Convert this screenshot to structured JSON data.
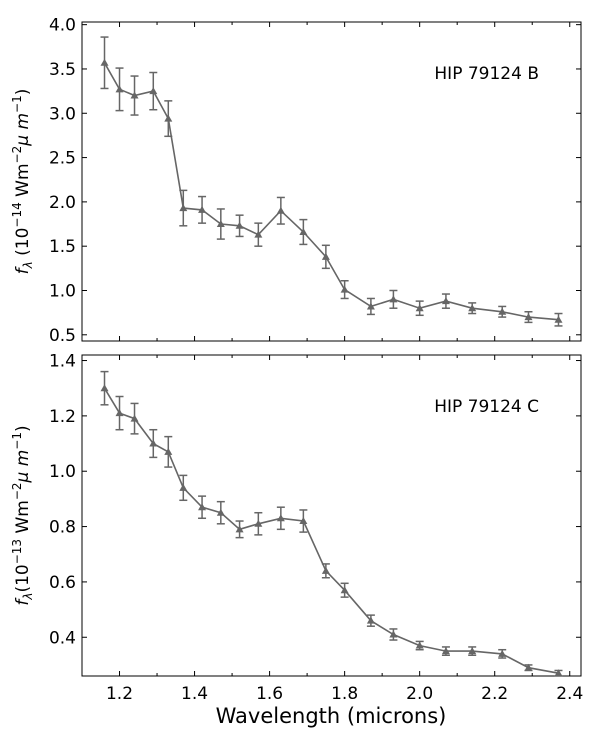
{
  "chart_data": [
    {
      "type": "line",
      "label": "HIP 79124 B",
      "ylabel": "f_λ (10⁻¹⁴ Wm⁻²μm⁻¹)",
      "ylabel_parts": [
        "(10",
        "−14",
        " Wm",
        "−2",
        "μ m",
        "−1",
        ")"
      ],
      "xlim": [
        1.1,
        2.43
      ],
      "ylim": [
        0.43,
        4.03
      ],
      "yticks": [
        0.5,
        1.0,
        1.5,
        2.0,
        2.5,
        3.0,
        3.5,
        4.0
      ],
      "ytick_labels": [
        "0.5",
        "1.0",
        "1.5",
        "2.0",
        "2.5",
        "3.0",
        "3.5",
        "4.0"
      ],
      "series_color": "#666666",
      "x": [
        1.16,
        1.2,
        1.24,
        1.29,
        1.33,
        1.37,
        1.42,
        1.47,
        1.52,
        1.57,
        1.63,
        1.69,
        1.75,
        1.8,
        1.87,
        1.93,
        2.0,
        2.07,
        2.14,
        2.22,
        2.29,
        2.37
      ],
      "y": [
        3.57,
        3.27,
        3.2,
        3.25,
        2.94,
        1.93,
        1.91,
        1.75,
        1.73,
        1.63,
        1.9,
        1.66,
        1.38,
        1.01,
        0.82,
        0.9,
        0.8,
        0.88,
        0.8,
        0.76,
        0.7,
        0.67
      ],
      "yerr": [
        0.29,
        0.24,
        0.22,
        0.21,
        0.2,
        0.2,
        0.15,
        0.17,
        0.12,
        0.13,
        0.15,
        0.14,
        0.13,
        0.1,
        0.09,
        0.1,
        0.08,
        0.08,
        0.06,
        0.06,
        0.06,
        0.07
      ]
    },
    {
      "type": "line",
      "label": "HIP 79124 C",
      "ylabel": "f_λ (10⁻¹³ Wm⁻²μm⁻¹)",
      "ylabel_parts": [
        "(10",
        "−13",
        " Wm",
        "−2",
        "μ m",
        "−1",
        ")"
      ],
      "xlim": [
        1.1,
        2.43
      ],
      "ylim": [
        0.26,
        1.42
      ],
      "yticks": [
        0.4,
        0.6,
        0.8,
        1.0,
        1.2,
        1.4
      ],
      "ytick_labels": [
        "0.4",
        "0.6",
        "0.8",
        "1.0",
        "1.2",
        "1.4"
      ],
      "series_color": "#666666",
      "x": [
        1.16,
        1.2,
        1.24,
        1.29,
        1.33,
        1.37,
        1.42,
        1.47,
        1.52,
        1.57,
        1.63,
        1.69,
        1.75,
        1.8,
        1.87,
        1.93,
        2.0,
        2.07,
        2.14,
        2.22,
        2.29,
        2.37
      ],
      "y": [
        1.3,
        1.21,
        1.19,
        1.1,
        1.07,
        0.94,
        0.87,
        0.85,
        0.79,
        0.81,
        0.83,
        0.82,
        0.64,
        0.57,
        0.46,
        0.41,
        0.37,
        0.35,
        0.35,
        0.34,
        0.29,
        0.27
      ],
      "yerr": [
        0.06,
        0.06,
        0.055,
        0.05,
        0.055,
        0.045,
        0.04,
        0.04,
        0.03,
        0.04,
        0.04,
        0.04,
        0.025,
        0.025,
        0.02,
        0.02,
        0.015,
        0.015,
        0.015,
        0.015,
        0.01,
        0.01
      ]
    }
  ],
  "xaxis": {
    "label": "Wavelength (microns)",
    "ticks": [
      1.2,
      1.4,
      1.6,
      1.8,
      2.0,
      2.2,
      2.4
    ],
    "tick_labels": [
      "1.2",
      "1.4",
      "1.6",
      "1.8",
      "2.0",
      "2.2",
      "2.4"
    ],
    "minor_step": 0.1
  }
}
